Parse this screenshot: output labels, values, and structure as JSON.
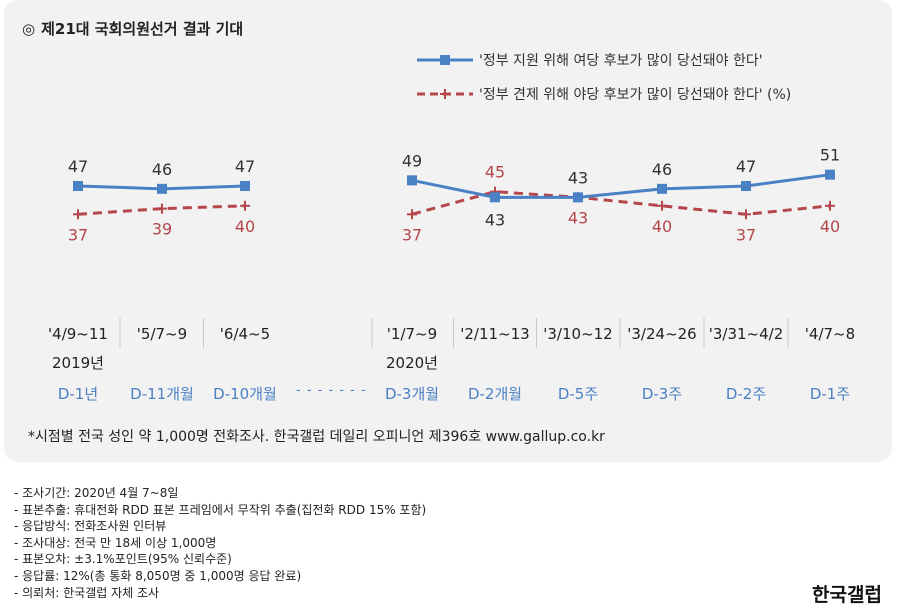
{
  "header": {
    "mark": "◎",
    "title": "제21대 국회의원선거 결과 기대"
  },
  "legend": {
    "series1": "'정부 지원 위해 여당 후보가 많이 당선돼야 한다'",
    "series2": "'정부 견제 위해 야당 후보가 많이 당선돼야 한다'",
    "unit": "(%)"
  },
  "chart_data": {
    "type": "line",
    "title": "제21대 국회의원선거 결과 기대",
    "categories": [
      "'4/9~11",
      "'5/7~9",
      "'6/4~5",
      "'1/7~9",
      "'2/11~13",
      "'3/10~12",
      "'3/24~26",
      "'3/31~4/2",
      "'4/7~8"
    ],
    "year_labels": [
      "2019년",
      "",
      "",
      "2020년",
      "",
      "",
      "",
      "",
      ""
    ],
    "dday_labels": [
      "D-1년",
      "D-11개월",
      "D-10개월",
      "D-3개월",
      "D-2개월",
      "D-5주",
      "D-3주",
      "D-2주",
      "D-1주"
    ],
    "series": [
      {
        "name": "'정부 지원 위해 여당 후보가 많이 당선돼야 한다'",
        "values": [
          47,
          46,
          47,
          49,
          43,
          43,
          46,
          47,
          51
        ],
        "color": "#4a80c4"
      },
      {
        "name": "'정부 견제 위해 야당 후보가 많이 당선돼야 한다'",
        "values": [
          37,
          39,
          40,
          37,
          45,
          43,
          40,
          37,
          40
        ],
        "color": "#b5464b"
      }
    ],
    "segments": [
      [
        0,
        2
      ],
      [
        3,
        8
      ]
    ],
    "gap_label": "- - - - - - -",
    "legend_position": "top-right",
    "grid": false
  },
  "footnote": "*시점별 전국 성인 약 1,000명 전화조사. 한국갤럽 데일리 오피니언 제396호 www.gallup.co.kr",
  "notes": [
    "- 조사기간: 2020년 4월 7~8일",
    "- 표본추출: 휴대전화 RDD 표본 프레임에서 무작위 추출(집전화 RDD 15% 포함)",
    "- 응답방식: 전화조사원 인터뷰",
    "- 조사대상: 전국 만 18세 이상 1,000명",
    "- 표본오차: ±3.1%포인트(95% 신뢰수준)",
    "- 응답률: 12%(총 통화 8,050명 중 1,000명 응답 완료)",
    "- 의뢰처: 한국갤럽 자체 조사"
  ],
  "brand": "한국갤럽"
}
